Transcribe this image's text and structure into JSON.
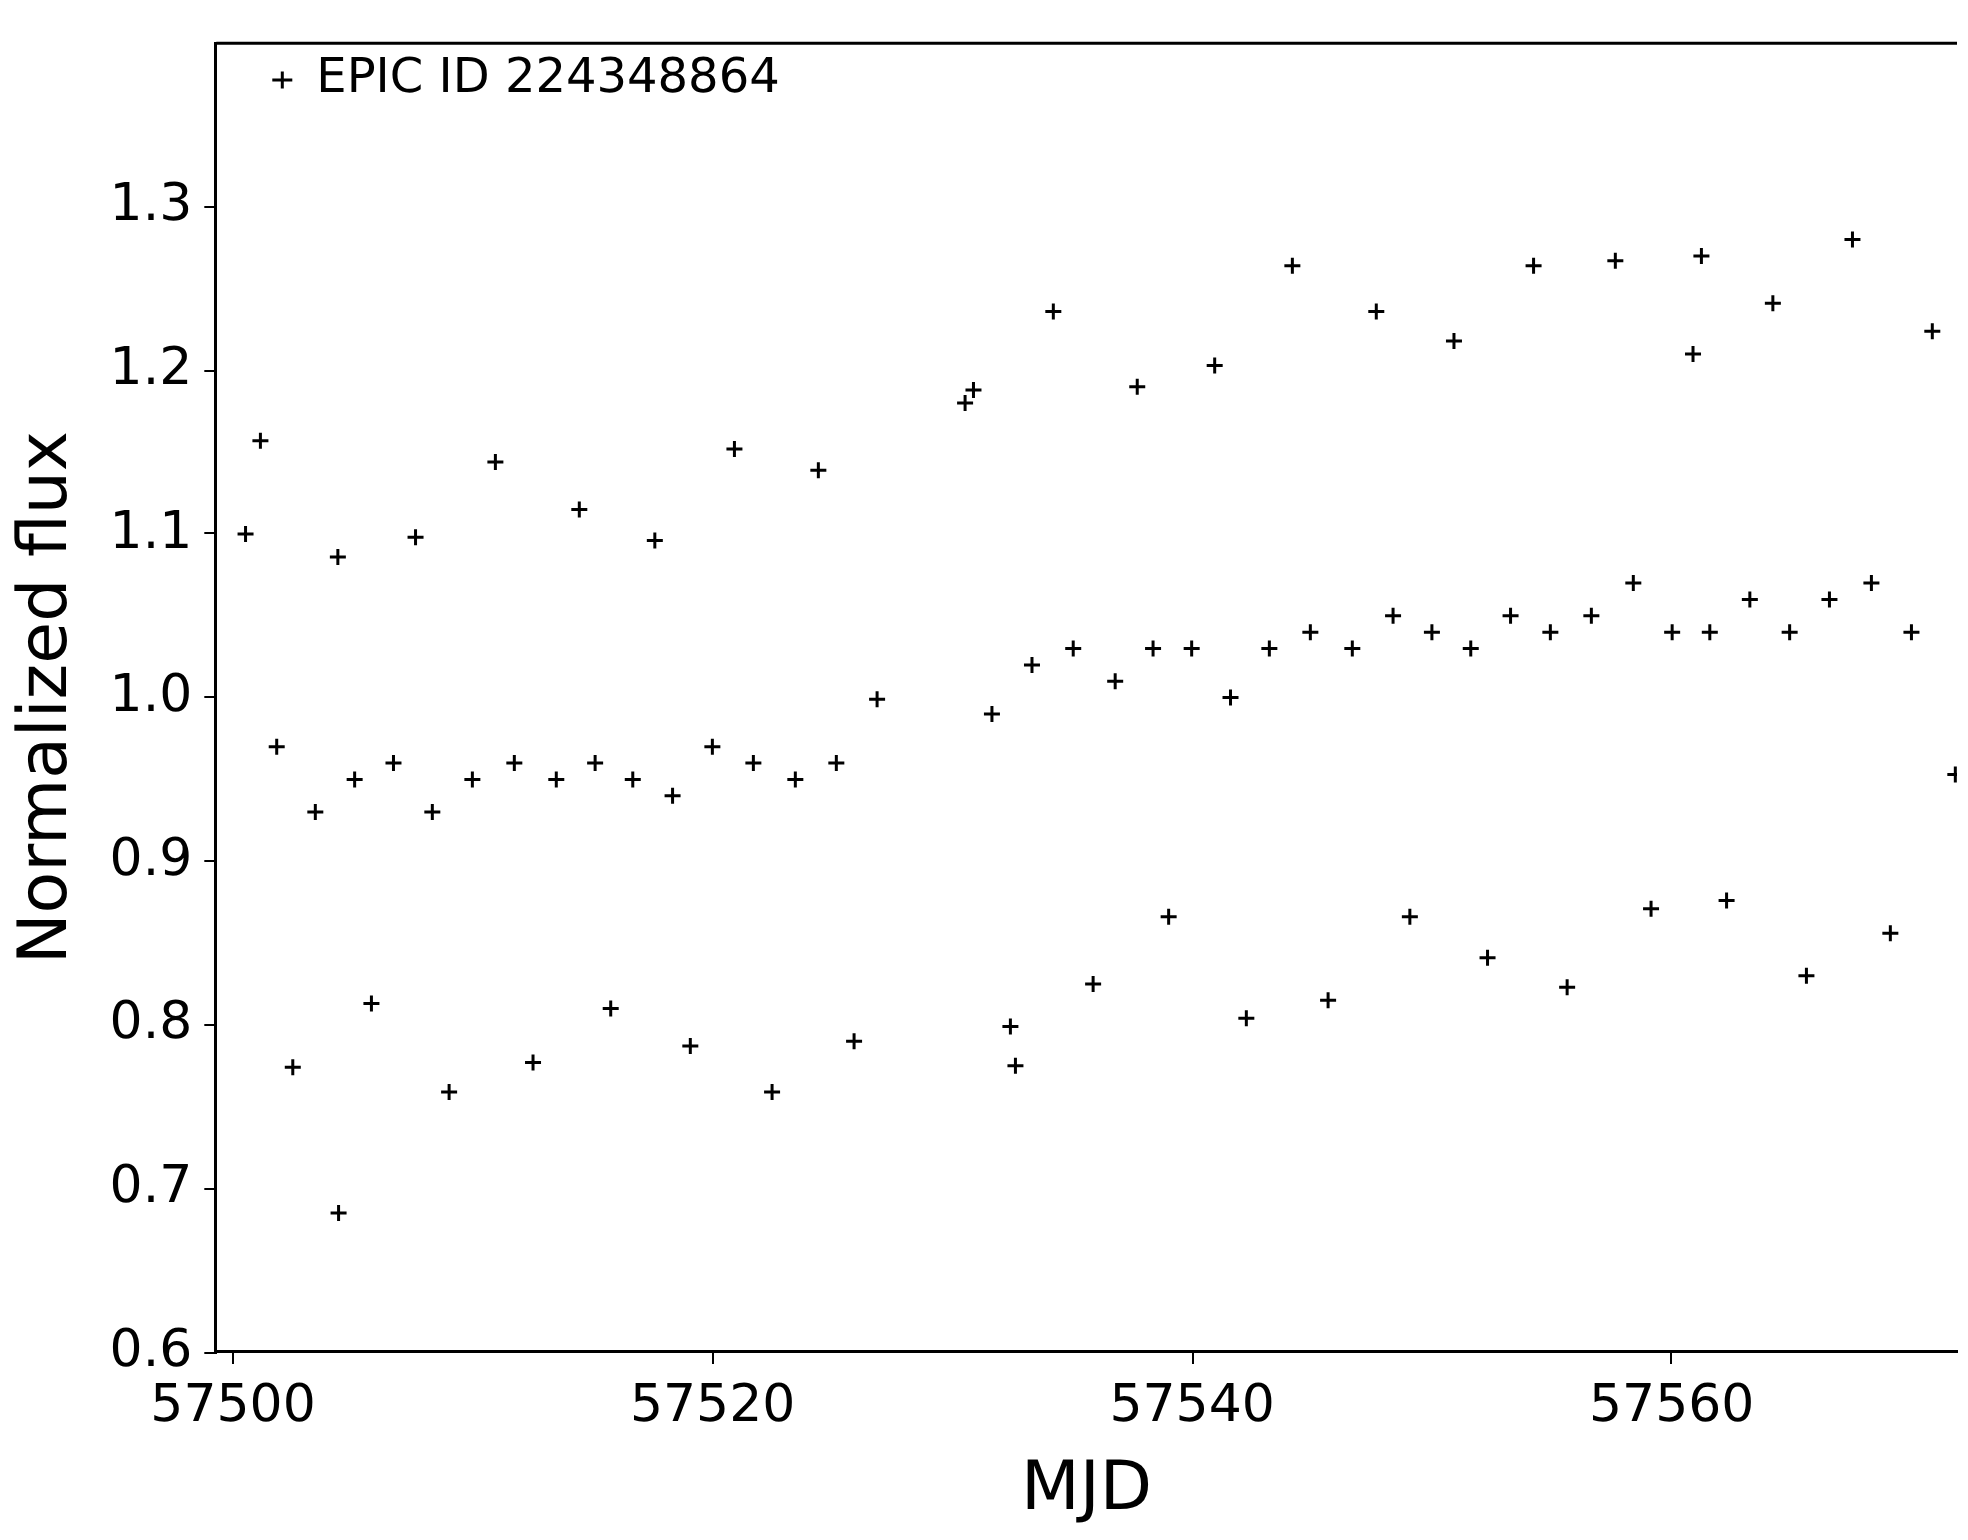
{
  "chart_data": {
    "type": "scatter",
    "xlabel": "MJD",
    "ylabel": "Normalized flux",
    "xlim": [
      57499.3,
      57571.9
    ],
    "xticks": [
      57500,
      57520,
      57540,
      57560
    ],
    "ylim": [
      0.6,
      1.4
    ],
    "yticks": [
      0.6,
      0.7,
      0.8,
      0.9,
      {
        "value": 1.0,
        "label": "1.0"
      },
      1.1,
      1.2,
      1.3
    ],
    "grid": false,
    "legend": "top left",
    "marker": "cross",
    "series": [
      {
        "name": "EPIC ID 224348864",
        "color": "#000000",
        "x": [
          57500.52,
          57501.14,
          57501.82,
          57502.49,
          57503.43,
          57504.37,
          57504.4,
          57505.07,
          57505.77,
          57506.69,
          57507.61,
          57508.31,
          57509.01,
          57509.98,
          57510.94,
          57511.73,
          57512.51,
          57513.48,
          57514.44,
          57515.1,
          57515.75,
          57516.67,
          57517.59,
          57518.33,
          57519.07,
          57519.99,
          57520.91,
          57521.7,
          57522.48,
          57523.45,
          57524.41,
          57525.16,
          57525.9,
          57526.86,
          57530.53,
          57530.88,
          57531.65,
          57532.42,
          57532.63,
          57533.32,
          57534.21,
          57535.04,
          57535.87,
          57536.79,
          57537.71,
          57538.37,
          57539.02,
          57539.98,
          57540.94,
          57541.6,
          57542.26,
          57543.22,
          57544.18,
          57544.93,
          57545.67,
          57546.68,
          57547.68,
          57548.38,
          57549.08,
          57550.0,
          57550.92,
          57551.62,
          57552.32,
          57553.28,
          57554.24,
          57554.94,
          57555.64,
          57556.65,
          57557.65,
          57558.4,
          57559.14,
          57560.02,
          57560.89,
          57561.24,
          57561.59,
          57562.29,
          57563.26,
          57564.22,
          57564.92,
          57565.62,
          57566.58,
          57567.54,
          57568.33,
          57569.12,
          57570.0,
          57570.87,
          57571.83
        ],
        "values": [
          1.1,
          1.157,
          0.97,
          0.774,
          0.93,
          1.086,
          0.685,
          0.95,
          0.813,
          0.96,
          1.098,
          0.93,
          0.759,
          0.95,
          1.144,
          0.96,
          0.777,
          0.95,
          1.115,
          0.96,
          0.81,
          0.95,
          1.096,
          0.94,
          0.787,
          0.97,
          1.152,
          0.96,
          0.759,
          0.95,
          1.139,
          0.96,
          0.79,
          0.999,
          1.18,
          1.188,
          0.99,
          0.799,
          0.775,
          1.02,
          1.236,
          1.03,
          0.825,
          1.01,
          1.19,
          1.03,
          0.866,
          1.03,
          1.203,
          1.0,
          0.804,
          1.03,
          1.264,
          1.04,
          0.815,
          1.03,
          1.236,
          1.05,
          0.866,
          1.04,
          1.218,
          1.03,
          0.841,
          1.05,
          1.264,
          1.04,
          0.823,
          1.05,
          1.267,
          1.07,
          0.871,
          1.04,
          1.21,
          1.27,
          1.04,
          0.876,
          1.06,
          1.241,
          1.04,
          0.83,
          1.06,
          1.28,
          1.07,
          0.856,
          1.04,
          1.224,
          0.953
        ]
      }
    ]
  }
}
